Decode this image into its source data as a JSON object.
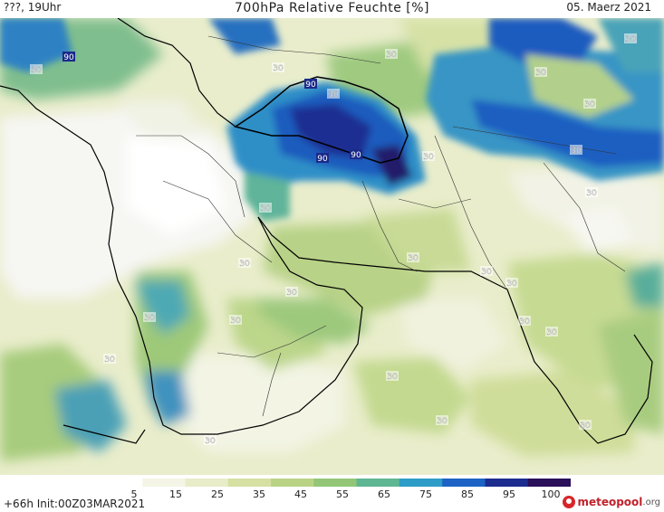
{
  "header": {
    "left": "???, 19Uhr",
    "title": "700hPa Relative Feuchte [%]",
    "date": "05. Maerz 2021"
  },
  "footer": {
    "run": "+66h Init:00Z03MAR2021",
    "logo_text": "meteopool",
    "logo_suffix": ".org"
  },
  "colorbar": {
    "ticks": [
      "5",
      "15",
      "25",
      "35",
      "45",
      "55",
      "65",
      "75",
      "85",
      "95",
      "100"
    ],
    "colors": [
      "#ffffff",
      "#f4f5e6",
      "#e8ecc8",
      "#d6e0a2",
      "#b9d384",
      "#93c677",
      "#5fb692",
      "#2d9cc6",
      "#1c63c5",
      "#1c2c8f",
      "#2a0f5a"
    ]
  },
  "contour_labels": [
    {
      "text": "90",
      "kind": "high"
    },
    {
      "text": "30",
      "kind": "low"
    },
    {
      "text": "30",
      "kind": "low"
    },
    {
      "text": "90",
      "kind": "high"
    },
    {
      "text": "90",
      "kind": "high"
    },
    {
      "text": "90",
      "kind": "high"
    },
    {
      "text": "30",
      "kind": "low"
    },
    {
      "text": "30",
      "kind": "low"
    },
    {
      "text": "30",
      "kind": "low"
    },
    {
      "text": "30",
      "kind": "low"
    },
    {
      "text": "30",
      "kind": "low"
    },
    {
      "text": "30",
      "kind": "low"
    },
    {
      "text": "30",
      "kind": "low"
    },
    {
      "text": "30",
      "kind": "low"
    },
    {
      "text": "30",
      "kind": "low"
    },
    {
      "text": "30",
      "kind": "low"
    },
    {
      "text": "30",
      "kind": "low"
    },
    {
      "text": "30",
      "kind": "low"
    },
    {
      "text": "30",
      "kind": "low"
    },
    {
      "text": "30",
      "kind": "low"
    },
    {
      "text": "30",
      "kind": "low"
    },
    {
      "text": "30",
      "kind": "low"
    },
    {
      "text": "30",
      "kind": "low"
    },
    {
      "text": "30",
      "kind": "low"
    },
    {
      "text": "30",
      "kind": "low"
    },
    {
      "text": "30",
      "kind": "low"
    },
    {
      "text": "30",
      "kind": "low"
    },
    {
      "text": "30",
      "kind": "low"
    },
    {
      "text": "30",
      "kind": "low"
    }
  ]
}
